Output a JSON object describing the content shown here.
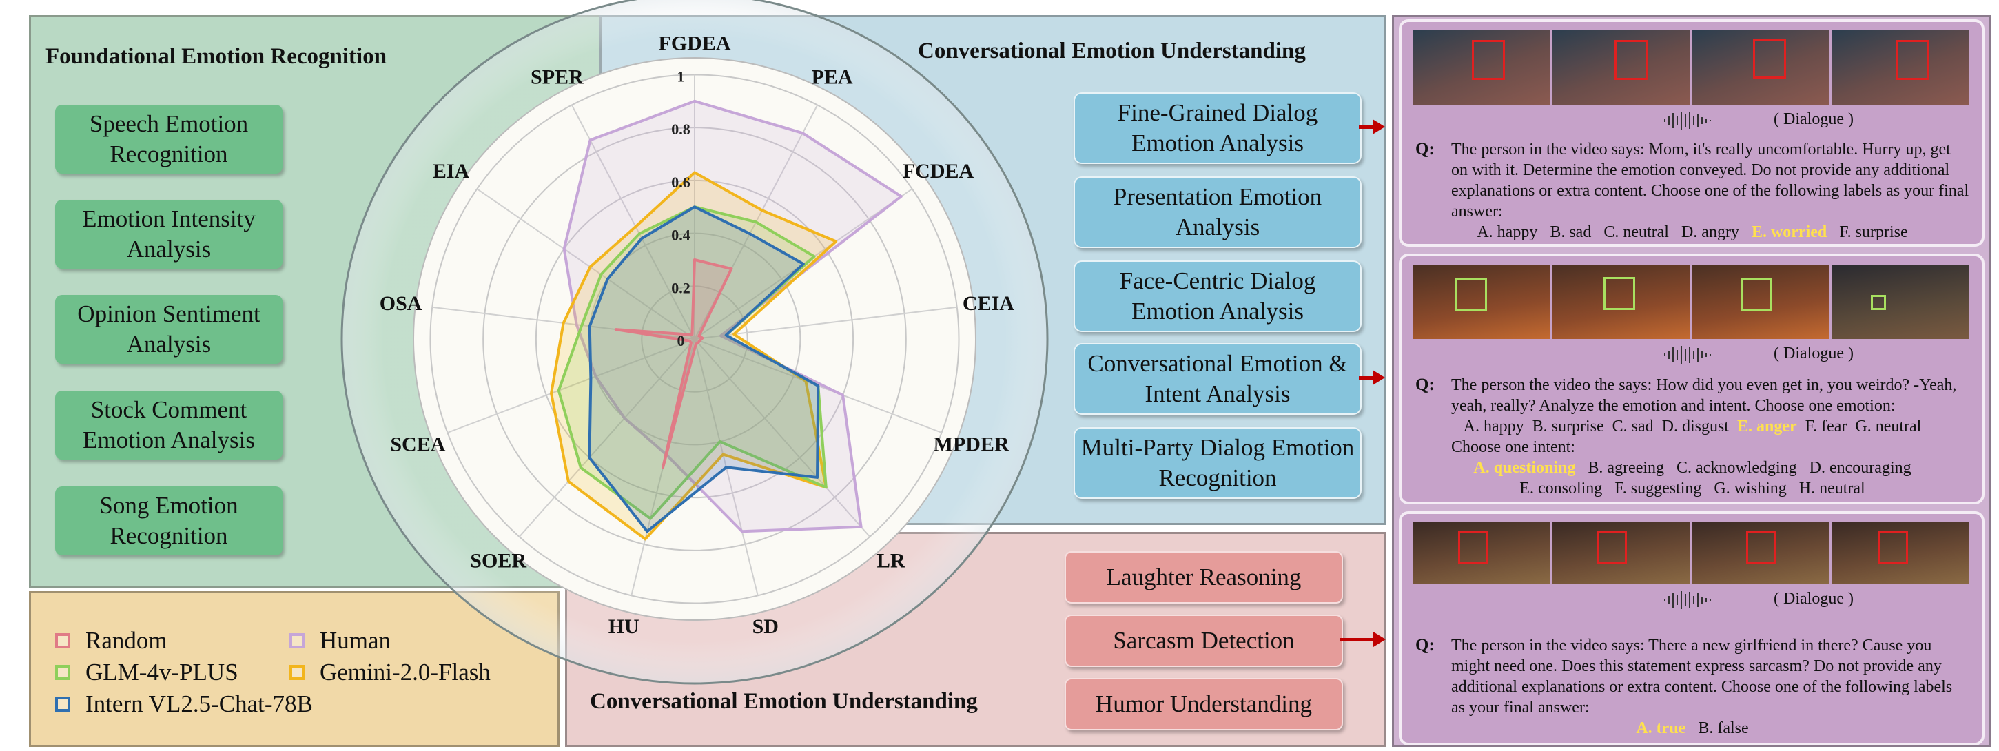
{
  "foundational": {
    "title": "Foundational Emotion Recognition",
    "tasks": [
      "Speech Emotion Recognition",
      "Emotion Intensity Analysis",
      "Opinion Sentiment Analysis",
      "Stock Comment Emotion Analysis",
      "Song Emotion Recognition"
    ]
  },
  "conversational": {
    "title": "Conversational Emotion Understanding",
    "tasks": [
      "Fine-Grained Dialog Emotion Analysis",
      "Presentation Emotion Analysis",
      "Face-Centric Dialog Emotion Analysis",
      "Conversational Emotion & Intent Analysis",
      "Multi-Party Dialog Emotion Recognition"
    ]
  },
  "conversational2": {
    "title": "Conversational Emotion Understanding",
    "tasks": [
      "Laughter Reasoning",
      "Sarcasm Detection",
      "Humor Understanding"
    ]
  },
  "legend": [
    {
      "label": "Random",
      "color": "#e07b86"
    },
    {
      "label": "Human",
      "color": "#c6a6d8"
    },
    {
      "label": "GLM-4v-PLUS",
      "color": "#8fcf5b"
    },
    {
      "label": "Gemini-2.0-Flash",
      "color": "#f2b51d"
    },
    {
      "label": "Intern VL2.5-Chat-78B",
      "color": "#2f6fb0"
    }
  ],
  "chart_data": {
    "type": "radar",
    "axes": [
      "FGDEA",
      "PEA",
      "FCDEA",
      "CEIA",
      "MPDER",
      "LR",
      "SD",
      "HU",
      "SOER",
      "SCEA",
      "OSA",
      "EIA",
      "SPER"
    ],
    "ticks": [
      "0",
      "0.2",
      "0.4",
      "0.6",
      "0.8",
      "1"
    ],
    "rlim": [
      0,
      1
    ],
    "series": [
      {
        "name": "Human",
        "color": "#c6a6d8",
        "values": [
          0.9,
          0.88,
          0.95,
          0.1,
          0.6,
          0.95,
          0.75,
          0.45,
          0.4,
          0.4,
          0.45,
          0.6,
          0.85
        ]
      },
      {
        "name": "Gemini-2.0-Flash",
        "color": "#f2b51d",
        "values": [
          0.63,
          0.55,
          0.65,
          0.15,
          0.45,
          0.75,
          0.45,
          0.78,
          0.72,
          0.58,
          0.5,
          0.48,
          0.48
        ]
      },
      {
        "name": "GLM-4v-PLUS",
        "color": "#8fcf5b",
        "values": [
          0.5,
          0.5,
          0.55,
          0.12,
          0.5,
          0.75,
          0.4,
          0.7,
          0.65,
          0.55,
          0.43,
          0.43,
          0.45
        ]
      },
      {
        "name": "Intern VL2.5-Chat-78B",
        "color": "#2f6fb0",
        "values": [
          0.5,
          0.45,
          0.5,
          0.12,
          0.5,
          0.7,
          0.5,
          0.75,
          0.6,
          0.42,
          0.4,
          0.4,
          0.43
        ]
      },
      {
        "name": "Random",
        "color": "#e07b86",
        "values": [
          0.3,
          0.3,
          0.02,
          0.03,
          0.02,
          0.02,
          0.02,
          0.5,
          0.02,
          0.02,
          0.3,
          0.03,
          0.02
        ]
      }
    ]
  },
  "cards": [
    {
      "label": "( Dialogue )",
      "q": "Q:",
      "text": "The person in the video says: Mom, it's really uncomfortable. Hurry up, get on with it. Determine the emotion conveyed. Do not provide any additional explanations or extra content. Choose one of the following labels as your final answer:",
      "options": [
        {
          "text": "A. happy",
          "hl": false
        },
        {
          "text": "B. sad",
          "hl": false
        },
        {
          "text": "C. neutral",
          "hl": false
        },
        {
          "text": "D. angry",
          "hl": false
        },
        {
          "text": "E. worried",
          "hl": true
        },
        {
          "text": "F. surprise",
          "hl": false
        }
      ]
    },
    {
      "label": "( Dialogue )",
      "q": "Q:",
      "text": "The person the video the says: How did you even get in, you weirdo? -Yeah, yeah, really? Analyze the emotion and intent. Choose one emotion:",
      "options": [
        {
          "text": "A. happy",
          "hl": false
        },
        {
          "text": "B. surprise",
          "hl": false
        },
        {
          "text": "C. sad",
          "hl": false
        },
        {
          "text": "D. disgust",
          "hl": false
        },
        {
          "text": "E. anger",
          "hl": true
        },
        {
          "text": "F. fear",
          "hl": false
        },
        {
          "text": "G. neutral",
          "hl": false
        }
      ],
      "text2": "Choose one intent:",
      "options2": [
        {
          "text": "A. questioning",
          "hl": true
        },
        {
          "text": "B. agreeing",
          "hl": false
        },
        {
          "text": "C. acknowledging",
          "hl": false
        },
        {
          "text": "D. encouraging",
          "hl": false
        }
      ],
      "options3": [
        {
          "text": "E. consoling",
          "hl": false
        },
        {
          "text": "F. suggesting",
          "hl": false
        },
        {
          "text": "G. wishing",
          "hl": false
        },
        {
          "text": "H. neutral",
          "hl": false
        }
      ]
    },
    {
      "label": "( Dialogue )",
      "q": "Q:",
      "text": "The person in the video says: There a new girlfriend in there? Cause you might need one. Does this statement express sarcasm? Do not provide any additional explanations or extra content. Choose one of the following labels as your final answer:",
      "options": [
        {
          "text": "A. true",
          "hl": true
        },
        {
          "text": "B. false",
          "hl": false
        }
      ]
    }
  ]
}
